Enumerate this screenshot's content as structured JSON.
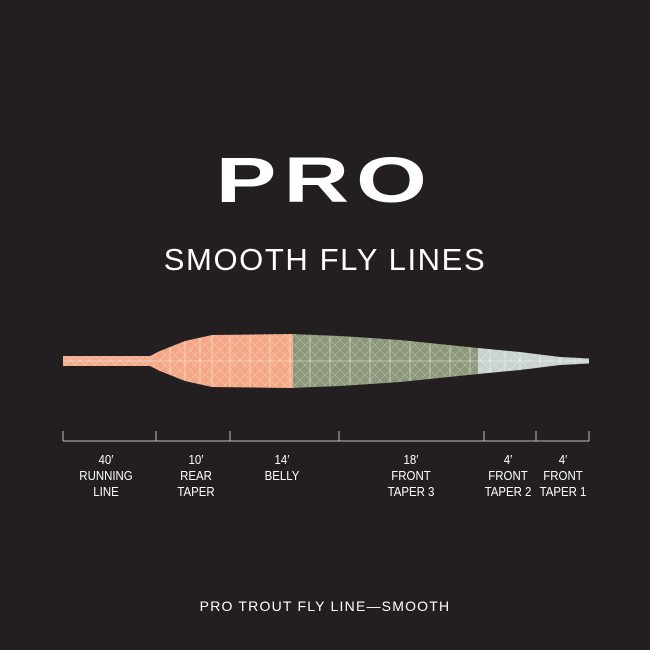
{
  "header": {
    "logo": "PRO",
    "subtitle": "SMOOTH FLY LINES"
  },
  "diagram": {
    "segments": [
      {
        "length": "40′",
        "name_line1": "RUNNING",
        "name_line2": "LINE",
        "feet": 40,
        "color": "#f2a98a"
      },
      {
        "length": "10′",
        "name_line1": "REAR",
        "name_line2": "TAPER",
        "feet": 10,
        "color": "#f4a784"
      },
      {
        "length": "14′",
        "name_line1": "BELLY",
        "name_line2": "",
        "feet": 14,
        "color": "#8c977a"
      },
      {
        "length": "18′",
        "name_line1": "FRONT",
        "name_line2": "TAPER 3",
        "feet": 18,
        "color": "#8f9a7c"
      },
      {
        "length": "4′",
        "name_line1": "FRONT",
        "name_line2": "TAPER 2",
        "feet": 4,
        "color": "#c9d2cc"
      },
      {
        "length": "4′",
        "name_line1": "FRONT",
        "name_line2": "TAPER 1",
        "feet": 4,
        "color": "#c9d2cc"
      }
    ]
  },
  "footer": {
    "caption": "PRO TROUT FLY LINE—SMOOTH"
  },
  "colors": {
    "background": "#231f20",
    "text": "#ffffff",
    "axis": "#bdbdbd",
    "orange": "#f4a784",
    "green": "#8c977a",
    "grey": "#c9d2cc"
  }
}
